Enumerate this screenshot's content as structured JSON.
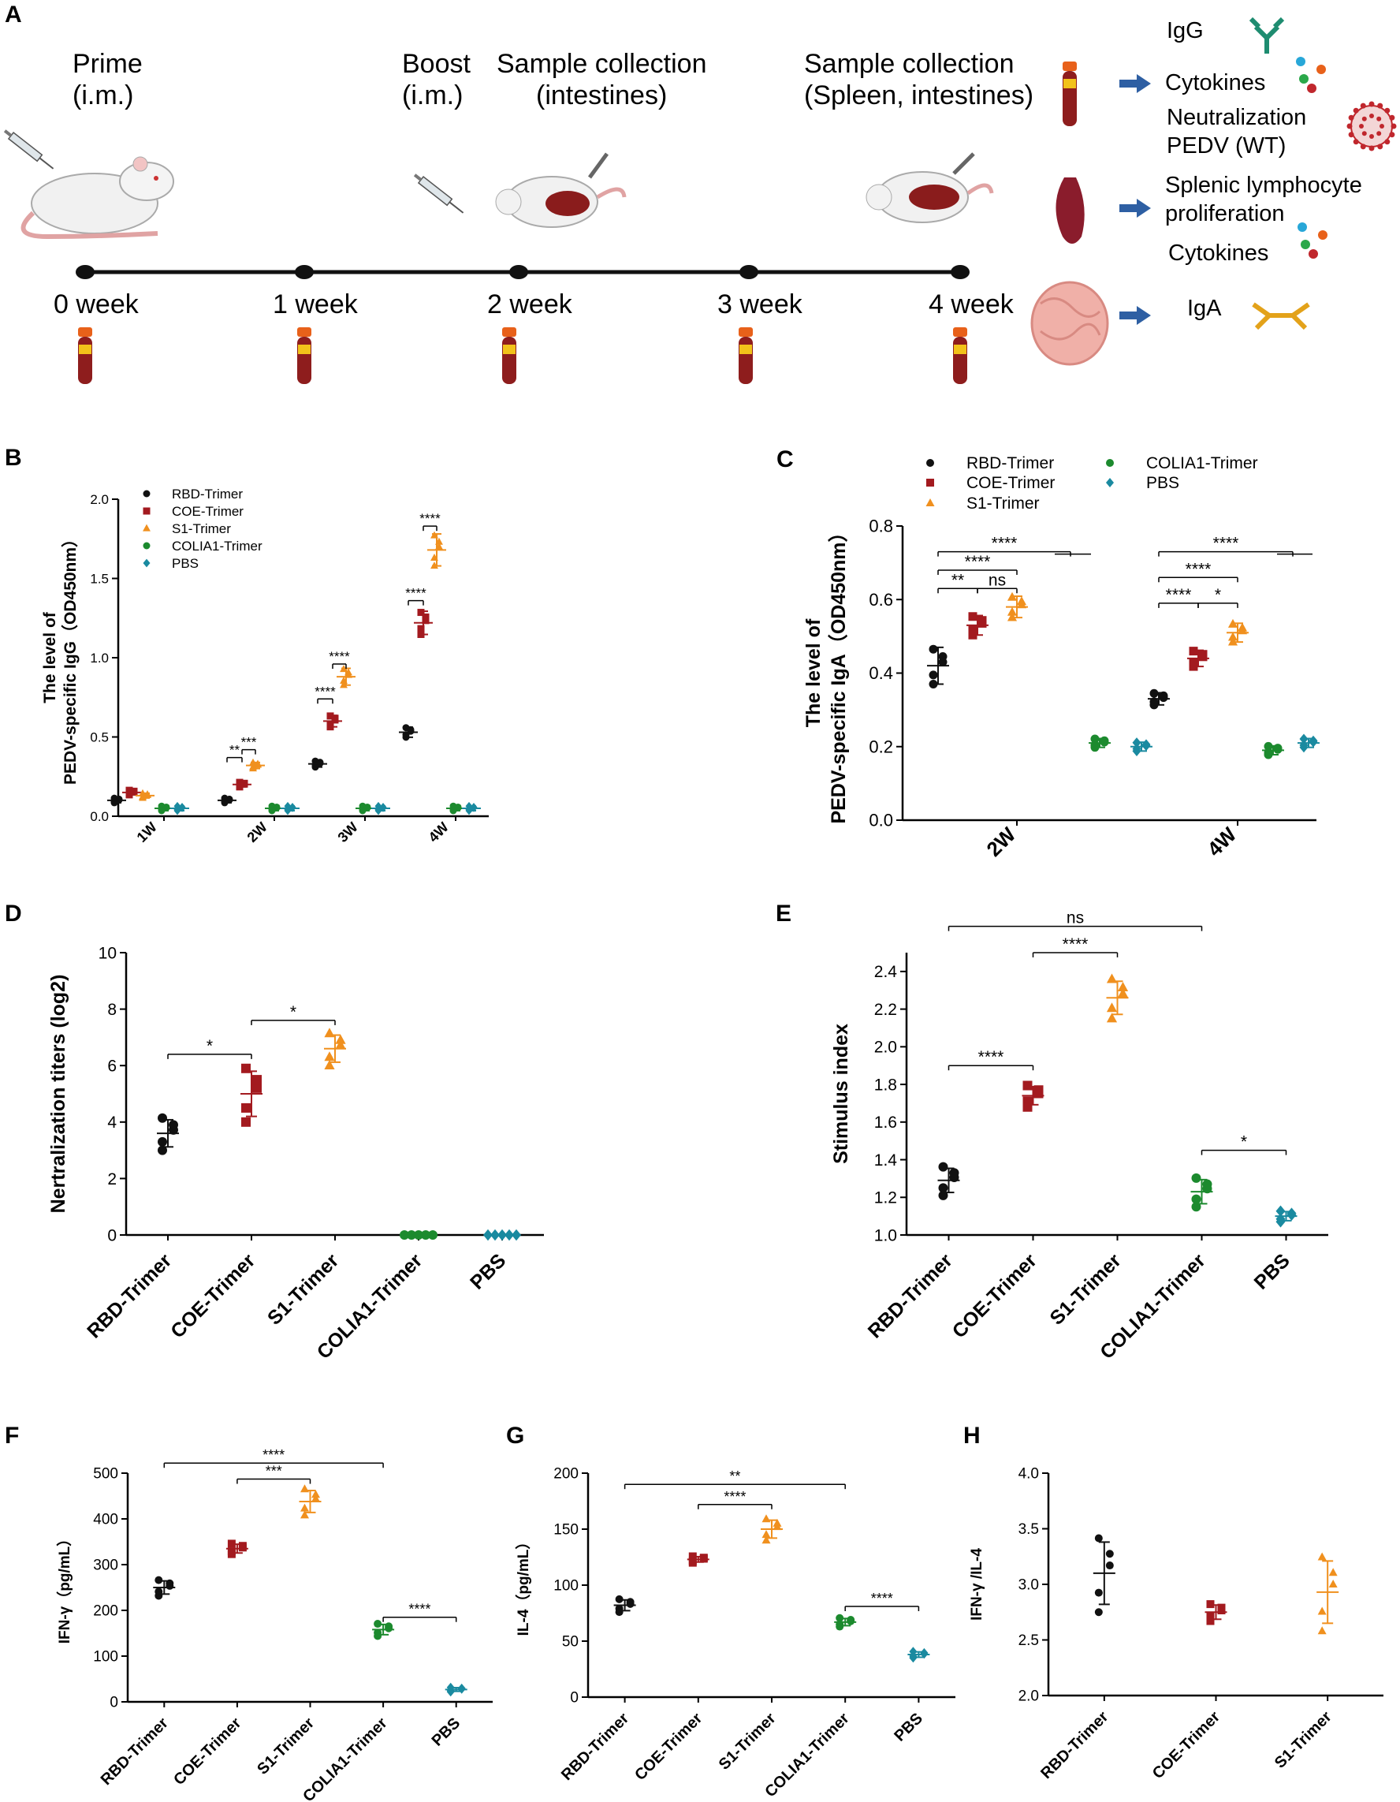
{
  "colors": {
    "rbd": "#111111",
    "coe": "#a31a1f",
    "s1": "#f0901e",
    "colia1": "#1c8a2e",
    "pbs": "#1a8aa0",
    "timeline": "#111111",
    "arrow": "#2e5fa3",
    "blood": "#8e1d1d",
    "cap": "#e8611a",
    "igg_icon": "#1e8c70",
    "iga_icon": "#e3a21a"
  },
  "panel_a": {
    "label": "A",
    "prime_title": "Prime",
    "prime_sub": "(i.m.)",
    "boost_title": "Boost",
    "boost_sub": "(i.m.)",
    "sample1_title": "Sample collection",
    "sample1_sub": "(intestines)",
    "sample2_title": "Sample collection",
    "sample2_sub": "(Spleen, intestines)",
    "weeks": [
      "0 week",
      "1 week",
      "2 week",
      "3 week",
      "4 week"
    ],
    "outputs": {
      "igg": "IgG",
      "cytokines1": "Cytokines",
      "neutralization": "Neutralization",
      "pedv": "PEDV (WT)",
      "splenic": "Splenic  lymphocyte",
      "proliferation": "proliferation",
      "cytokines2": "Cytokines",
      "iga": "IgA"
    },
    "icons": [
      "syringe-icon",
      "rat-icon",
      "blood-tube-icon",
      "spleen-icon",
      "intestine-icon",
      "antibody-icon",
      "virus-icon",
      "cytokine-dots-icon",
      "arrow-right-icon"
    ]
  },
  "chart_data": [
    {
      "panel": "B",
      "type": "scatter",
      "ylabel": "The level of PEDV-specific IgG（OD450nm）",
      "ylabel_line1": "The level of",
      "ylabel_line2": "PEDV-specific IgG（OD450nm）",
      "categories": [
        "1W",
        "2W",
        "3W",
        "4W"
      ],
      "ylim": [
        0,
        2.0
      ],
      "yticks": [
        "0.0",
        "0.5",
        "1.0",
        "1.5",
        "2.0"
      ],
      "legend": [
        "RBD-Trimer",
        "COE-Trimer",
        "S1-Trimer",
        "COLIA1-Trimer",
        "PBS"
      ],
      "series": [
        {
          "name": "RBD-Trimer",
          "means": [
            0.1,
            0.1,
            0.33,
            0.53
          ]
        },
        {
          "name": "COE-Trimer",
          "means": [
            0.15,
            0.2,
            0.6,
            1.22
          ]
        },
        {
          "name": "S1-Trimer",
          "means": [
            0.13,
            0.32,
            0.88,
            1.68
          ]
        },
        {
          "name": "COLIA1-Trimer",
          "means": [
            0.05,
            0.05,
            0.05,
            0.05
          ]
        },
        {
          "name": "PBS",
          "means": [
            0.05,
            0.05,
            0.05,
            0.05
          ]
        }
      ],
      "annotations": [
        "**",
        "***",
        "****",
        "****",
        "****",
        "****"
      ]
    },
    {
      "panel": "C",
      "type": "scatter",
      "ylabel": "The level of PEDV-specific IgA（OD450nm）",
      "ylabel_line1": "The level of",
      "ylabel_line2": "PEDV-specific IgA（OD450nm）",
      "categories": [
        "2W",
        "4W"
      ],
      "ylim": [
        0,
        0.8
      ],
      "yticks": [
        "0.0",
        "0.2",
        "0.4",
        "0.6",
        "0.8"
      ],
      "legend": [
        "RBD-Trimer",
        "COE-Trimer",
        "S1-Trimer",
        "COLIA1-Trimer",
        "PBS"
      ],
      "series": [
        {
          "name": "RBD-Trimer",
          "means": [
            0.42,
            0.33
          ]
        },
        {
          "name": "COE-Trimer",
          "means": [
            0.53,
            0.44
          ]
        },
        {
          "name": "S1-Trimer",
          "means": [
            0.58,
            0.51
          ]
        },
        {
          "name": "COLIA1-Trimer",
          "means": [
            0.21,
            0.19
          ]
        },
        {
          "name": "PBS",
          "means": [
            0.2,
            0.21
          ]
        }
      ],
      "annotations": [
        "****",
        "****",
        "**",
        "ns",
        "****",
        "****",
        "****",
        "*"
      ]
    },
    {
      "panel": "D",
      "type": "scatter",
      "ylabel": "Nertralization titers (log2)",
      "categories": [
        "RBD-Trimer",
        "COE-Trimer",
        "S1-Trimer",
        "COLIA1-Trimer",
        "PBS"
      ],
      "ylim": [
        0,
        10
      ],
      "yticks": [
        "0",
        "2",
        "4",
        "6",
        "8",
        "10"
      ],
      "means": [
        3.6,
        5.0,
        6.6,
        0,
        0
      ],
      "annotations": [
        "*",
        "*"
      ]
    },
    {
      "panel": "E",
      "type": "scatter",
      "ylabel": "Stimulus index",
      "categories": [
        "RBD-Trimer",
        "COE-Trimer",
        "S1-Trimer",
        "COLIA1-Trimer",
        "PBS"
      ],
      "ylim": [
        1.0,
        2.5
      ],
      "yticks": [
        "1.0",
        "1.2",
        "1.4",
        "1.6",
        "1.8",
        "2.0",
        "2.2",
        "2.4"
      ],
      "means": [
        1.29,
        1.74,
        2.26,
        1.23,
        1.1
      ],
      "annotations": [
        "ns",
        "****",
        "****",
        "*"
      ]
    },
    {
      "panel": "F",
      "type": "scatter",
      "ylabel": "IFN-γ（pg/mL）",
      "categories": [
        "RBD-Trimer",
        "COE-Trimer",
        "S1-Trimer",
        "COLIA1-Trimer",
        "PBS"
      ],
      "ylim": [
        0,
        500
      ],
      "yticks": [
        "0",
        "100",
        "200",
        "300",
        "400",
        "500"
      ],
      "means": [
        250,
        335,
        438,
        158,
        27
      ],
      "annotations": [
        "****",
        "***",
        "****"
      ]
    },
    {
      "panel": "G",
      "type": "scatter",
      "ylabel": "IL-4（pg/mL）",
      "categories": [
        "RBD-Trimer",
        "COE-Trimer",
        "S1-Trimer",
        "COLIA1-Trimer",
        "PBS"
      ],
      "ylim": [
        0,
        200
      ],
      "yticks": [
        "0",
        "50",
        "100",
        "150",
        "200"
      ],
      "means": [
        82,
        123,
        150,
        67,
        38
      ],
      "annotations": [
        "**",
        "****",
        "****"
      ]
    },
    {
      "panel": "H",
      "type": "scatter",
      "ylabel": "IFN-γ /IL-4",
      "categories": [
        "RBD-Trimer",
        "COE-Trimer",
        "S1-Trimer"
      ],
      "ylim": [
        2.0,
        4.0
      ],
      "yticks": [
        "2.0",
        "2.5",
        "3.0",
        "3.5",
        "4.0"
      ],
      "means": [
        3.1,
        2.75,
        2.93
      ],
      "annotations": []
    }
  ]
}
